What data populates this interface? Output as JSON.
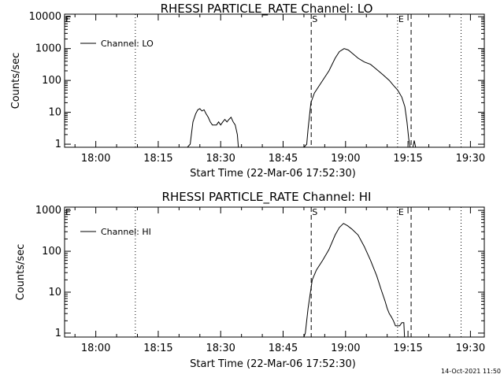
{
  "footer": "14-Oct-2021 11:50",
  "chart_data": [
    {
      "type": "line",
      "title": "RHESSI PARTICLE_RATE Channel: LO",
      "xlabel": "Start Time (22-Mar-06 17:52:30)",
      "ylabel": "Counts/sec",
      "yscale": "log",
      "xlim": [
        "17:52:30",
        "19:33:20"
      ],
      "ylim": [
        0.8,
        12000
      ],
      "xtick_labels": [
        "18:00",
        "18:15",
        "18:30",
        "18:45",
        "19:00",
        "19:15",
        "19:30"
      ],
      "ytick_labels": [
        "1",
        "10",
        "100",
        "1000",
        "10000"
      ],
      "markers": [
        {
          "label": "E",
          "time": "17:52:30",
          "style": "none"
        },
        {
          "label": "S",
          "time": "18:51:45",
          "style": "dashed"
        },
        {
          "label": "E",
          "time": "19:12:30",
          "style": "dotted"
        },
        {
          "label": "",
          "time": "19:15:45",
          "style": "dashed"
        },
        {
          "label": "",
          "time": "18:09:30",
          "style": "dotted"
        },
        {
          "label": "",
          "time": "19:27:45",
          "style": "dotted"
        }
      ],
      "legend": "Channel: LO",
      "series": [
        {
          "name": "Channel: LO",
          "segments": [
            [
              [
                "18:22:00",
                0.8
              ],
              [
                "18:22:40",
                1
              ],
              [
                "18:23:20",
                5
              ],
              [
                "18:24:00",
                9
              ],
              [
                "18:24:30",
                12
              ],
              [
                "18:25:00",
                13
              ],
              [
                "18:25:30",
                11
              ],
              [
                "18:26:00",
                12
              ],
              [
                "18:26:30",
                9
              ],
              [
                "18:27:00",
                7
              ],
              [
                "18:27:30",
                5
              ],
              [
                "18:28:00",
                4
              ],
              [
                "18:28:30",
                4
              ],
              [
                "18:29:00",
                4
              ],
              [
                "18:29:30",
                5
              ],
              [
                "18:30:00",
                4
              ],
              [
                "18:30:30",
                5
              ],
              [
                "18:31:00",
                6
              ],
              [
                "18:31:30",
                5
              ],
              [
                "18:32:00",
                6
              ],
              [
                "18:32:30",
                7
              ],
              [
                "18:33:00",
                5
              ],
              [
                "18:33:30",
                4
              ],
              [
                "18:34:00",
                2
              ],
              [
                "18:34:15",
                0.8
              ]
            ],
            [
              [
                "18:50:00",
                0.8
              ],
              [
                "18:50:40",
                1
              ],
              [
                "18:51:00",
                3
              ],
              [
                "18:51:40",
                20
              ],
              [
                "18:52:30",
                40
              ],
              [
                "18:54:00",
                80
              ],
              [
                "18:56:00",
                200
              ],
              [
                "18:57:30",
                500
              ],
              [
                "18:58:30",
                800
              ],
              [
                "18:59:40",
                1000
              ],
              [
                "19:00:40",
                900
              ],
              [
                "19:01:40",
                700
              ],
              [
                "19:03:00",
                500
              ],
              [
                "19:04:30",
                380
              ],
              [
                "19:06:00",
                320
              ],
              [
                "19:07:30",
                220
              ],
              [
                "19:09:00",
                150
              ],
              [
                "19:10:30",
                100
              ],
              [
                "19:11:30",
                70
              ],
              [
                "19:12:30",
                50
              ],
              [
                "19:13:30",
                30
              ],
              [
                "19:14:15",
                15
              ],
              [
                "19:14:45",
                5
              ],
              [
                "19:15:10",
                1.5
              ],
              [
                "19:15:30",
                0.8
              ]
            ],
            [
              [
                "19:16:10",
                0.8
              ],
              [
                "19:16:30",
                1.3
              ],
              [
                "19:16:50",
                0.8
              ]
            ]
          ]
        }
      ]
    },
    {
      "type": "line",
      "title": "RHESSI PARTICLE_RATE Channel: HI",
      "xlabel": "Start Time (22-Mar-06 17:52:30)",
      "ylabel": "Counts/sec",
      "yscale": "log",
      "xlim": [
        "17:52:30",
        "19:33:20"
      ],
      "ylim": [
        0.8,
        1200
      ],
      "xtick_labels": [
        "18:00",
        "18:15",
        "18:30",
        "18:45",
        "19:00",
        "19:15",
        "19:30"
      ],
      "ytick_labels": [
        "1",
        "10",
        "100",
        "1000"
      ],
      "markers": [
        {
          "label": "E",
          "time": "17:52:30",
          "style": "none"
        },
        {
          "label": "S",
          "time": "18:51:45",
          "style": "dashed"
        },
        {
          "label": "E",
          "time": "19:12:30",
          "style": "dotted"
        },
        {
          "label": "",
          "time": "19:15:45",
          "style": "dashed"
        },
        {
          "label": "",
          "time": "18:09:30",
          "style": "dotted"
        },
        {
          "label": "",
          "time": "19:27:45",
          "style": "dotted"
        }
      ],
      "legend": "Channel: HI",
      "series": [
        {
          "name": "Channel: HI",
          "segments": [
            [
              [
                "18:50:00",
                0.8
              ],
              [
                "18:50:20",
                1
              ],
              [
                "18:51:00",
                4
              ],
              [
                "18:52:00",
                20
              ],
              [
                "18:53:00",
                35
              ],
              [
                "18:54:30",
                60
              ],
              [
                "18:56:00",
                110
              ],
              [
                "18:57:30",
                250
              ],
              [
                "18:58:30",
                380
              ],
              [
                "18:59:30",
                480
              ],
              [
                "19:00:30",
                420
              ],
              [
                "19:01:30",
                350
              ],
              [
                "19:03:00",
                250
              ],
              [
                "19:04:30",
                130
              ],
              [
                "19:06:00",
                60
              ],
              [
                "19:07:30",
                25
              ],
              [
                "19:08:30",
                12
              ],
              [
                "19:09:30",
                6
              ],
              [
                "19:10:00",
                4
              ],
              [
                "19:10:30",
                3
              ],
              [
                "19:11:00",
                2.5
              ],
              [
                "19:11:30",
                2
              ],
              [
                "19:12:00",
                1.5
              ],
              [
                "19:13:00",
                1.5
              ],
              [
                "19:13:30",
                1.8
              ],
              [
                "19:14:00",
                1.8
              ],
              [
                "19:14:10",
                0.8
              ]
            ]
          ]
        }
      ]
    }
  ]
}
